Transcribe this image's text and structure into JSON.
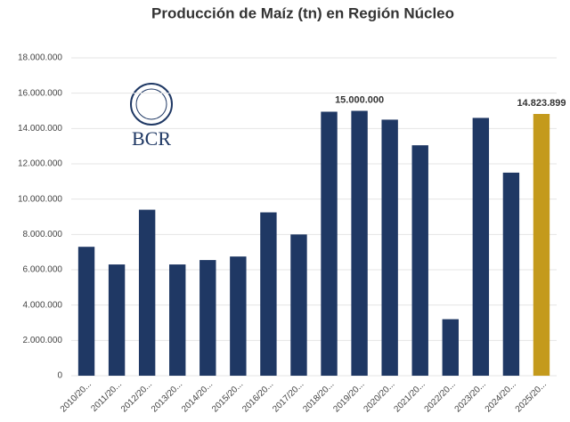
{
  "chart_data": {
    "type": "bar",
    "title": "Producción de Maíz (tn) en Región Núcleo",
    "logo_text": "BCR",
    "categories": [
      "2010/20...",
      "2011/20...",
      "2012/20...",
      "2013/20...",
      "2014/20...",
      "2015/20...",
      "2016/20...",
      "2017/20...",
      "2018/20...",
      "2019/20...",
      "2020/20...",
      "2021/20...",
      "2022/20...",
      "2023/20...",
      "2024/20...",
      "2025/20..."
    ],
    "values": [
      7300000,
      6300000,
      9400000,
      6300000,
      6550000,
      6750000,
      9250000,
      8000000,
      14950000,
      15000000,
      14500000,
      13050000,
      3200000,
      14600000,
      11500000,
      14823899
    ],
    "value_labels": [
      null,
      null,
      null,
      null,
      null,
      null,
      null,
      null,
      null,
      "15.000.000",
      null,
      null,
      null,
      null,
      null,
      "14.823.899"
    ],
    "colors": [
      "#1f3864",
      "#1f3864",
      "#1f3864",
      "#1f3864",
      "#1f3864",
      "#1f3864",
      "#1f3864",
      "#1f3864",
      "#1f3864",
      "#1f3864",
      "#1f3864",
      "#1f3864",
      "#1f3864",
      "#1f3864",
      "#1f3864",
      "#c49a1c"
    ],
    "ylim": [
      0,
      18000000
    ],
    "yticks": [
      0,
      {
        "value": 2000000,
        "label": "2.000.000"
      },
      {
        "value": 4000000,
        "label": "4.000.000"
      },
      {
        "value": 6000000,
        "label": "6.000.000"
      },
      {
        "value": 8000000,
        "label": "8.000.000"
      },
      {
        "value": 10000000,
        "label": "10.000.000"
      },
      {
        "value": 12000000,
        "label": "12.000.000"
      },
      {
        "value": 14000000,
        "label": "14.000.000"
      },
      {
        "value": 16000000,
        "label": "16.000.000"
      },
      {
        "value": 18000000,
        "label": "18.000.000"
      }
    ],
    "grid": true
  }
}
